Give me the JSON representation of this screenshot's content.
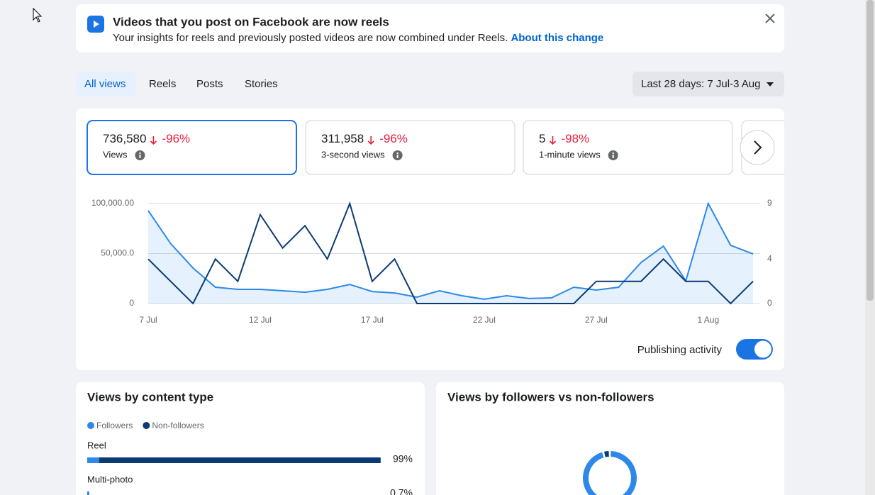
{
  "banner": {
    "title": "Videos that you post on Facebook are now reels",
    "text": "Your insights for reels and previously posted videos are now combined under Reels.",
    "link": "About this change"
  },
  "tabs": [
    "All views",
    "Reels",
    "Posts",
    "Stories"
  ],
  "date_range": "Last 28 days: 7 Jul-3 Aug",
  "metrics": [
    {
      "value": "736,580",
      "change": "-96%",
      "label": "Views"
    },
    {
      "value": "311,958",
      "change": "-96%",
      "label": "3-second views"
    },
    {
      "value": "5",
      "change": "-98%",
      "label": "1-minute views"
    }
  ],
  "toggle_label": "Publishing activity",
  "chart_data": [
    {
      "type": "line",
      "x": [
        "7 Jul",
        null,
        null,
        null,
        null,
        "12 Jul",
        null,
        null,
        null,
        null,
        "17 Jul",
        null,
        null,
        null,
        null,
        "22 Jul",
        null,
        null,
        null,
        null,
        "27 Jul",
        null,
        null,
        null,
        null,
        "1 Aug",
        null,
        null
      ],
      "series": [
        {
          "color": "#2d88ea",
          "area": true,
          "values": [
            93000,
            60000,
            35500,
            16300,
            14200,
            14200,
            12800,
            11300,
            14200,
            19100,
            12000,
            10600,
            6400,
            12800,
            7800,
            4300,
            7800,
            5000,
            5700,
            16300,
            13500,
            16300,
            41000,
            57400,
            22700,
            100000,
            58200,
            49600
          ]
        },
        {
          "color": "#0b3b75",
          "axis": "y2",
          "values": [
            4,
            2,
            0,
            4,
            2,
            8,
            5,
            7,
            4,
            9,
            2,
            4,
            0,
            0,
            0,
            0,
            0,
            0,
            0,
            0,
            2,
            2,
            2,
            4,
            2,
            2,
            0,
            2
          ]
        }
      ],
      "ylim": [
        0,
        100000
      ],
      "yticks": [
        0,
        {
          "value": 50000,
          "label": "50,000.0"
        },
        {
          "value": 100000,
          "label": "100,000.00"
        }
      ],
      "y2lim": [
        0,
        9
      ],
      "y2ticks": [
        0,
        4,
        9
      ],
      "grid": true
    },
    {
      "type": "bar",
      "orientation": "horizontal",
      "title": "Views by content type",
      "categories": [
        "Reel",
        "Multi-photo"
      ],
      "series": [
        {
          "name": "Followers",
          "color": "#2d88ea",
          "values": [
            4,
            0.7
          ]
        },
        {
          "name": "Non-followers",
          "color": "#0b3b75",
          "values": [
            95,
            0
          ]
        }
      ],
      "values": [
        99,
        0.7
      ],
      "value_labels": [
        "99%",
        "0.7%"
      ],
      "xlim": [
        0,
        100
      ]
    },
    {
      "type": "pie",
      "title": "Views by followers vs non-followers",
      "donut": true,
      "values": [
        96,
        4
      ],
      "colors": [
        "#2d88ea",
        "#0b3b75"
      ]
    }
  ]
}
